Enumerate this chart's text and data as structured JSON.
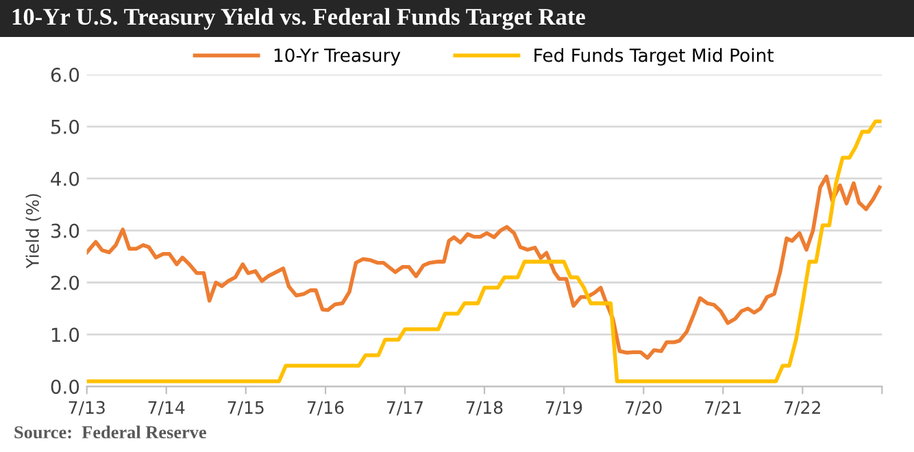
{
  "chart_data": {
    "type": "line",
    "title": "10-Yr U.S. Treasury Yield vs. Federal Funds Target Rate",
    "ylabel": "Yield (%)",
    "annotations": [
      "Source:  Federal Reserve"
    ],
    "legend": "top",
    "grid": "y",
    "xlim": [
      "2013-07",
      "2023-07"
    ],
    "xticks": [
      {
        "value": "2013-07",
        "label": "7/13"
      },
      {
        "value": "2014-07",
        "label": "7/14"
      },
      {
        "value": "2015-07",
        "label": "7/15"
      },
      {
        "value": "2016-07",
        "label": "7/16"
      },
      {
        "value": "2017-07",
        "label": "7/17"
      },
      {
        "value": "2018-07",
        "label": "7/18"
      },
      {
        "value": "2019-07",
        "label": "7/19"
      },
      {
        "value": "2020-07",
        "label": "7/20"
      },
      {
        "value": "2021-07",
        "label": "7/21"
      },
      {
        "value": "2022-07",
        "label": "7/22"
      },
      {
        "value": "2023-07",
        "label": null
      }
    ],
    "ylim": [
      0,
      6
    ],
    "yticks": [
      {
        "value": 0,
        "label": "0.0"
      },
      {
        "value": 1,
        "label": "1.0"
      },
      {
        "value": 2,
        "label": "2.0"
      },
      {
        "value": 3,
        "label": "3.0"
      },
      {
        "value": 4,
        "label": "4.0"
      },
      {
        "value": 5,
        "label": "5.0"
      },
      {
        "value": 6,
        "label": "6.0"
      }
    ],
    "series": [
      {
        "name": "10-Yr Treasury",
        "color": "#ed7d31",
        "x": [
          "2013-07-01",
          "2013-08-11",
          "2013-09-09",
          "2013-10-12",
          "2013-11-11",
          "2013-12-13",
          "2014-01-12",
          "2014-02-14",
          "2014-03-17",
          "2014-04-12",
          "2014-05-14",
          "2014-06-17",
          "2014-07-15",
          "2014-08-18",
          "2014-09-13",
          "2014-10-15",
          "2014-11-18",
          "2014-12-20",
          "2015-01-15",
          "2015-02-14",
          "2015-03-13",
          "2015-04-12",
          "2015-05-14",
          "2015-06-17",
          "2015-07-12",
          "2015-08-14",
          "2015-09-13",
          "2015-10-15",
          "2015-11-18",
          "2015-12-20",
          "2016-01-15",
          "2016-02-18",
          "2016-03-24",
          "2016-04-23",
          "2016-05-18",
          "2016-06-17",
          "2016-07-12",
          "2016-08-14",
          "2016-09-17",
          "2016-10-19",
          "2016-11-18",
          "2016-12-20",
          "2017-01-23",
          "2017-02-25",
          "2017-03-24",
          "2017-05-18",
          "2017-06-20",
          "2017-07-19",
          "2017-08-21",
          "2017-09-24",
          "2017-10-23",
          "2017-11-25",
          "2017-12-27",
          "2018-01-19",
          "2018-02-11",
          "2018-03-13",
          "2018-04-15",
          "2018-05-14",
          "2018-06-13",
          "2018-07-12",
          "2018-08-14",
          "2018-09-13",
          "2018-10-12",
          "2018-11-14",
          "2018-12-13",
          "2019-01-15",
          "2019-02-18",
          "2019-03-17",
          "2019-04-12",
          "2019-05-18",
          "2019-06-09",
          "2019-07-12",
          "2019-08-14",
          "2019-09-17",
          "2019-10-15",
          "2019-11-18",
          "2019-12-17",
          "2020-01-08",
          "2020-02-11",
          "2020-03-13",
          "2020-04-15",
          "2020-05-14",
          "2020-06-17",
          "2020-07-19",
          "2020-08-18",
          "2020-09-20",
          "2020-10-15",
          "2020-11-18",
          "2020-12-13",
          "2021-01-15",
          "2021-02-18",
          "2021-03-17",
          "2021-04-19",
          "2021-05-21",
          "2021-06-20",
          "2021-07-23",
          "2021-08-25",
          "2021-09-24",
          "2021-10-23",
          "2021-11-21",
          "2021-12-20",
          "2022-01-19",
          "2022-02-21",
          "2022-03-20",
          "2022-04-19",
          "2022-05-14",
          "2022-06-17",
          "2022-07-19",
          "2022-08-18",
          "2022-09-20",
          "2022-10-19",
          "2022-11-14",
          "2022-12-20",
          "2023-01-19",
          "2023-02-21",
          "2023-03-17",
          "2023-04-19",
          "2023-05-21",
          "2023-06-20"
        ],
        "values": [
          2.58,
          2.78,
          2.62,
          2.58,
          2.72,
          3.02,
          2.65,
          2.65,
          2.72,
          2.68,
          2.48,
          2.55,
          2.55,
          2.35,
          2.48,
          2.35,
          2.18,
          2.18,
          1.65,
          2.0,
          1.93,
          2.03,
          2.1,
          2.35,
          2.18,
          2.22,
          2.03,
          2.13,
          2.2,
          2.27,
          1.92,
          1.75,
          1.78,
          1.85,
          1.85,
          1.48,
          1.47,
          1.58,
          1.6,
          1.82,
          2.38,
          2.45,
          2.43,
          2.38,
          2.38,
          2.2,
          2.3,
          2.3,
          2.12,
          2.33,
          2.38,
          2.4,
          2.4,
          2.8,
          2.87,
          2.77,
          2.93,
          2.88,
          2.88,
          2.95,
          2.87,
          3.0,
          3.07,
          2.95,
          2.68,
          2.63,
          2.67,
          2.47,
          2.57,
          2.2,
          2.07,
          2.07,
          1.55,
          1.72,
          1.72,
          1.8,
          1.9,
          1.65,
          1.3,
          0.68,
          0.65,
          0.66,
          0.66,
          0.55,
          0.7,
          0.68,
          0.85,
          0.85,
          0.88,
          1.05,
          1.4,
          1.7,
          1.6,
          1.57,
          1.45,
          1.22,
          1.3,
          1.45,
          1.5,
          1.42,
          1.5,
          1.72,
          1.78,
          2.2,
          2.85,
          2.8,
          2.95,
          2.63,
          3.0,
          3.83,
          4.04,
          3.58,
          3.87,
          3.52,
          3.91,
          3.54,
          3.41,
          3.6,
          3.83
        ]
      },
      {
        "name": "Fed Funds Target Mid Point",
        "color": "#ffc000",
        "x": [
          "2013-07-01",
          "2015-12-01",
          "2016-01-01",
          "2016-12-01",
          "2017-01-01",
          "2017-03-01",
          "2017-04-01",
          "2017-06-01",
          "2017-07-01",
          "2017-12-01",
          "2018-01-01",
          "2018-03-01",
          "2018-04-01",
          "2018-06-01",
          "2018-07-01",
          "2018-09-01",
          "2018-10-01",
          "2018-12-01",
          "2019-01-01",
          "2019-07-01",
          "2019-08-01",
          "2019-09-01",
          "2019-10-01",
          "2019-11-01",
          "2020-02-01",
          "2020-03-01",
          "2022-03-01",
          "2022-04-01",
          "2022-05-01",
          "2022-06-01",
          "2022-07-01",
          "2022-08-01",
          "2022-09-01",
          "2022-10-01",
          "2022-11-01",
          "2022-12-01",
          "2023-01-01",
          "2023-02-01",
          "2023-03-01",
          "2023-04-01",
          "2023-05-01",
          "2023-06-01",
          "2023-06-20"
        ],
        "values": [
          0.1,
          0.1,
          0.4,
          0.4,
          0.6,
          0.6,
          0.9,
          0.9,
          1.1,
          1.1,
          1.4,
          1.4,
          1.6,
          1.6,
          1.9,
          1.9,
          2.1,
          2.1,
          2.4,
          2.4,
          2.1,
          2.1,
          1.9,
          1.6,
          1.6,
          0.1,
          0.1,
          0.4,
          0.4,
          0.9,
          1.6,
          2.4,
          2.4,
          3.1,
          3.1,
          3.9,
          4.4,
          4.4,
          4.6,
          4.9,
          4.9,
          5.1,
          5.1
        ]
      }
    ]
  }
}
